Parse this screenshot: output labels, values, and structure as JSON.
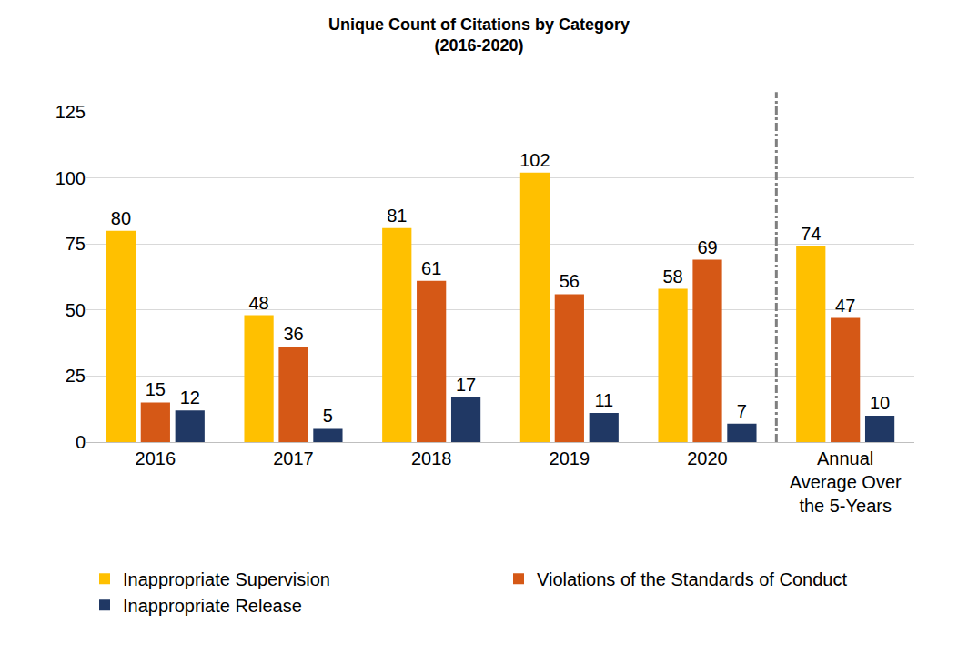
{
  "chart_data": {
    "type": "bar",
    "title": "Unique Count of Citations by Category",
    "subtitle": "(2016-2020)",
    "categories": [
      "2016",
      "2017",
      "2018",
      "2019",
      "2020",
      "Annual Average Over the 5-Years"
    ],
    "series": [
      {
        "name": "Inappropriate Supervision",
        "color": "#FFC000",
        "values": [
          80,
          48,
          81,
          102,
          58,
          74
        ]
      },
      {
        "name": "Violations of the Standards of Conduct",
        "color": "#D55816",
        "values": [
          15,
          36,
          61,
          56,
          69,
          47
        ]
      },
      {
        "name": "Inappropriate Release",
        "color": "#203864",
        "values": [
          12,
          5,
          17,
          11,
          7,
          10
        ]
      }
    ],
    "ylim": [
      0,
      125
    ],
    "yticks": [
      0,
      25,
      50,
      75,
      100,
      125
    ],
    "grid": true,
    "legend": "bottom",
    "data_labels": true
  }
}
